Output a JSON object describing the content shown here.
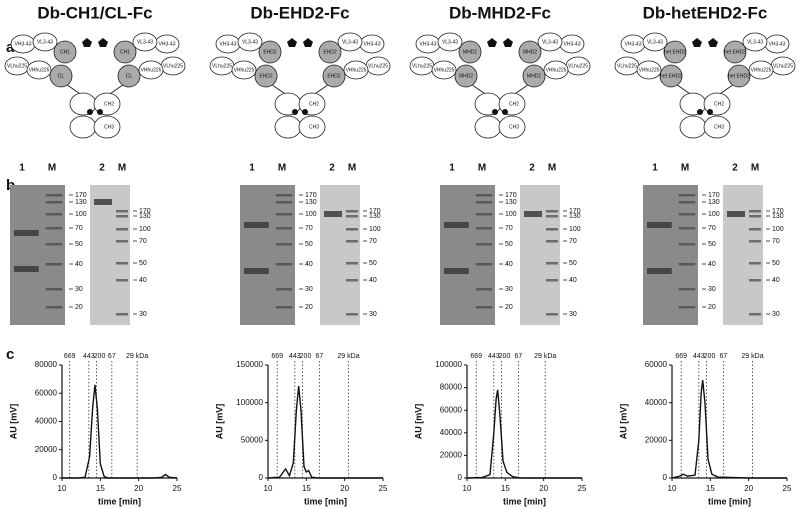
{
  "panel_labels": [
    "a",
    "b",
    "c"
  ],
  "columns": [
    {
      "title": "Db-CH1/CL-Fc",
      "schematic": {
        "variable": [
          "VH3-43",
          "VL3-43",
          "VLhu225",
          "VHhu225"
        ],
        "constant": [
          "CH1",
          "CL"
        ],
        "fc": [
          "CH2",
          "CH3"
        ]
      },
      "gel1": {
        "lanes": [
          "1",
          "M"
        ],
        "markers": [
          "170",
          "130",
          "100",
          "70",
          "50",
          "40",
          "30",
          "20"
        ]
      },
      "gel2": {
        "lanes": [
          "2",
          "M"
        ],
        "markers": [
          "170",
          "130",
          "100",
          "70",
          "50",
          "40",
          "30"
        ]
      }
    },
    {
      "title": "Db-EHD2-Fc",
      "schematic": {
        "variable": [
          "VH3-43",
          "VL3-43",
          "VLhu225",
          "VHhu225"
        ],
        "constant": [
          "EHD2",
          "EHD2"
        ],
        "fc": [
          "CH2",
          "CH3"
        ]
      },
      "gel1": {
        "lanes": [
          "1",
          "M"
        ],
        "markers": [
          "170",
          "130",
          "100",
          "70",
          "50",
          "40",
          "30",
          "20"
        ]
      },
      "gel2": {
        "lanes": [
          "2",
          "M"
        ],
        "markers": [
          "170",
          "130",
          "100",
          "70",
          "50",
          "40",
          "30"
        ]
      }
    },
    {
      "title": "Db-MHD2-Fc",
      "schematic": {
        "variable": [
          "VH3-43",
          "VL3-43",
          "VLhu225",
          "VHhu225"
        ],
        "constant": [
          "MHD2",
          "MHD2"
        ],
        "fc": [
          "CH2",
          "CH3"
        ]
      },
      "gel1": {
        "lanes": [
          "1",
          "M"
        ],
        "markers": [
          "170",
          "130",
          "100",
          "70",
          "50",
          "40",
          "30",
          "20"
        ]
      },
      "gel2": {
        "lanes": [
          "2",
          "M"
        ],
        "markers": [
          "170",
          "130",
          "100",
          "70",
          "50",
          "40",
          "30"
        ]
      }
    },
    {
      "title": "Db-hetEHD2-Fc",
      "schematic": {
        "variable": [
          "VH3-43",
          "VL3-43",
          "VLhu225",
          "VHhu225"
        ],
        "constant": [
          "het EHD2",
          "het EHD2"
        ],
        "fc": [
          "CH2",
          "CH3"
        ]
      },
      "gel1": {
        "lanes": [
          "1",
          "M"
        ],
        "markers": [
          "170",
          "130",
          "100",
          "70",
          "50",
          "40",
          "30",
          "20"
        ]
      },
      "gel2": {
        "lanes": [
          "2",
          "M"
        ],
        "markers": [
          "170",
          "130",
          "100",
          "70",
          "50",
          "40",
          "30"
        ]
      }
    }
  ],
  "chart_data": [
    {
      "type": "line",
      "xlabel": "time [min]",
      "ylabel": "AU [mV]",
      "xlim": [
        10,
        25
      ],
      "xticks": [
        10,
        15,
        20,
        25
      ],
      "ylim": [
        0,
        80000
      ],
      "yticks": [
        0,
        20000,
        40000,
        60000,
        80000
      ],
      "standards": [
        {
          "label": "669",
          "x": 11
        },
        {
          "label": "443",
          "x": 13.5
        },
        {
          "label": "200",
          "x": 14.5
        },
        {
          "label": "67",
          "x": 16.5
        },
        {
          "label": "29 kDa",
          "x": 19.8
        }
      ],
      "x": [
        10,
        12,
        13,
        13.6,
        14,
        14.3,
        14.6,
        15,
        15.5,
        16,
        18,
        20,
        22,
        23,
        23.5,
        24,
        25
      ],
      "series": [
        {
          "color": "#111111",
          "values": [
            0,
            0,
            500,
            15000,
            50000,
            66000,
            50000,
            10000,
            1000,
            0,
            0,
            0,
            0,
            500,
            2500,
            500,
            0
          ]
        }
      ]
    },
    {
      "type": "line",
      "xlabel": "time [min]",
      "ylabel": "AU [mV]",
      "xlim": [
        10,
        25
      ],
      "xticks": [
        10,
        15,
        20,
        25
      ],
      "ylim": [
        0,
        150000
      ],
      "yticks": [
        0,
        50000,
        100000,
        150000
      ],
      "standards": [
        {
          "label": "669",
          "x": 11.2
        },
        {
          "label": "443",
          "x": 13.5
        },
        {
          "label": "200",
          "x": 14.5
        },
        {
          "label": "67",
          "x": 16.7
        },
        {
          "label": "29 kDa",
          "x": 20.5
        }
      ],
      "x": [
        10,
        11.5,
        12,
        12.3,
        12.8,
        13.3,
        13.7,
        14,
        14.3,
        14.7,
        15,
        15.3,
        15.7,
        16.5,
        20,
        25
      ],
      "series": [
        {
          "color": "#111111",
          "values": [
            0,
            1000,
            8000,
            12000,
            3000,
            20000,
            90000,
            122000,
            90000,
            15000,
            8000,
            10000,
            1000,
            0,
            0,
            0
          ]
        }
      ]
    },
    {
      "type": "line",
      "xlabel": "time [min]",
      "ylabel": "AU [mV]",
      "xlim": [
        10,
        25
      ],
      "xticks": [
        10,
        15,
        20,
        25
      ],
      "ylim": [
        0,
        100000
      ],
      "yticks": [
        0,
        20000,
        40000,
        60000,
        80000,
        100000
      ],
      "standards": [
        {
          "label": "669",
          "x": 11.2
        },
        {
          "label": "443",
          "x": 13.5
        },
        {
          "label": "200",
          "x": 14.5
        },
        {
          "label": "67",
          "x": 16.7
        },
        {
          "label": "29 kDa",
          "x": 20.2
        }
      ],
      "x": [
        10,
        12,
        13,
        13.5,
        13.8,
        14,
        14.3,
        14.7,
        15.2,
        16,
        17,
        20,
        25
      ],
      "series": [
        {
          "color": "#111111",
          "values": [
            0,
            500,
            3000,
            40000,
            70000,
            78000,
            55000,
            15000,
            5000,
            1000,
            0,
            0,
            0
          ]
        }
      ]
    },
    {
      "type": "line",
      "xlabel": "time [min]",
      "ylabel": "AU [mV]",
      "xlim": [
        10,
        25
      ],
      "xticks": [
        10,
        15,
        20,
        25
      ],
      "ylim": [
        0,
        60000
      ],
      "yticks": [
        0,
        20000,
        40000,
        60000
      ],
      "standards": [
        {
          "label": "669",
          "x": 11.2
        },
        {
          "label": "443",
          "x": 13.5
        },
        {
          "label": "200",
          "x": 14.5
        },
        {
          "label": "67",
          "x": 16.7
        },
        {
          "label": "29 kDa",
          "x": 20.5
        }
      ],
      "x": [
        10,
        11,
        11.5,
        12,
        13,
        13.5,
        13.8,
        14,
        14.3,
        14.7,
        15.2,
        16,
        20,
        25
      ],
      "series": [
        {
          "color": "#111111",
          "values": [
            0,
            1000,
            2000,
            1000,
            1500,
            20000,
            45000,
            52000,
            40000,
            10000,
            2000,
            500,
            0,
            0
          ]
        }
      ]
    }
  ]
}
